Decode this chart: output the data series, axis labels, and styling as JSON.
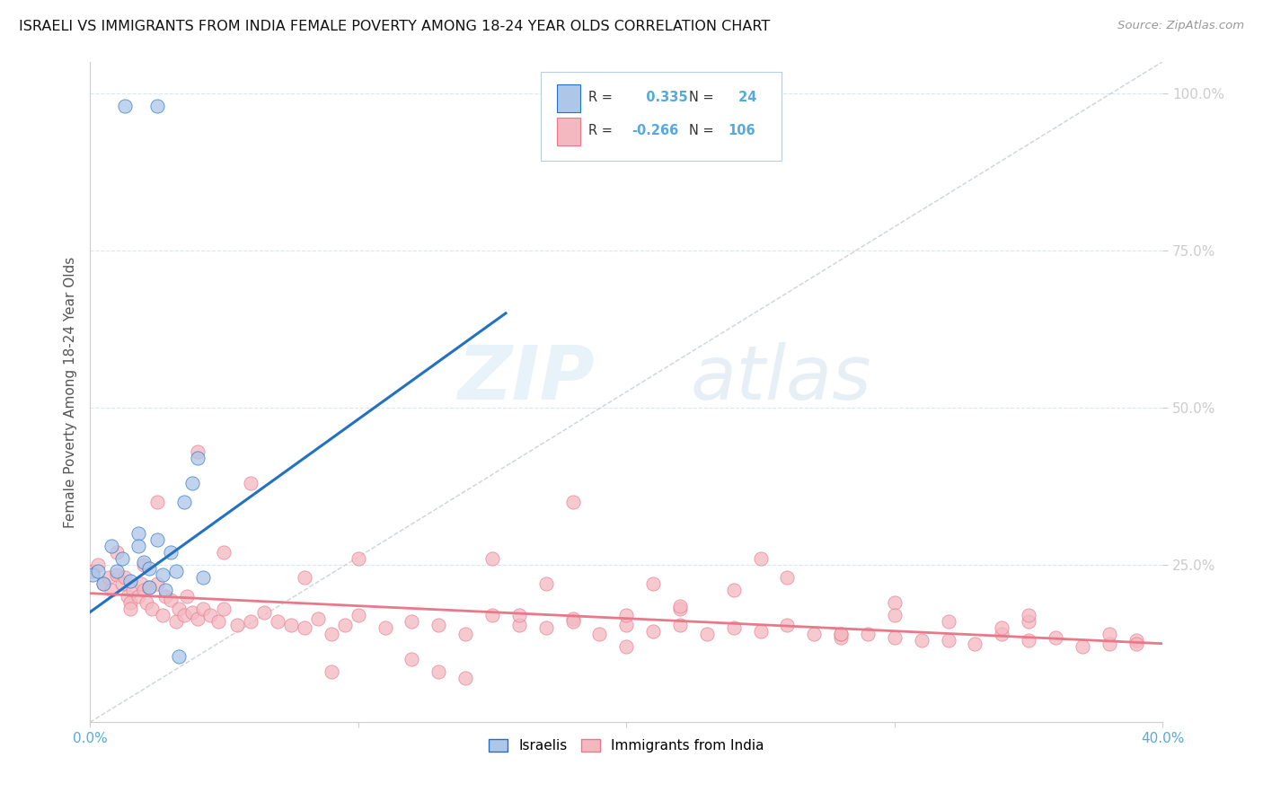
{
  "title": "ISRAELI VS IMMIGRANTS FROM INDIA FEMALE POVERTY AMONG 18-24 YEAR OLDS CORRELATION CHART",
  "source": "Source: ZipAtlas.com",
  "ylabel": "Female Poverty Among 18-24 Year Olds",
  "xlim": [
    0.0,
    0.4
  ],
  "ylim": [
    0.0,
    1.05
  ],
  "r_israeli": 0.335,
  "n_israeli": 24,
  "r_india": -0.266,
  "n_india": 106,
  "israeli_color": "#aec6e8",
  "india_color": "#f4b8c1",
  "israeli_line_color": "#2271c3",
  "india_line_color": "#e8788a",
  "diagonal_color": "#c0c8d0",
  "background_color": "#ffffff",
  "tick_color": "#55aadd",
  "israeli_scatter_x": [
    0.001,
    0.003,
    0.005,
    0.008,
    0.01,
    0.012,
    0.015,
    0.018,
    0.018,
    0.02,
    0.022,
    0.022,
    0.025,
    0.027,
    0.028,
    0.03,
    0.032,
    0.033,
    0.035,
    0.038,
    0.04,
    0.042,
    0.013,
    0.025
  ],
  "israeli_scatter_y": [
    0.235,
    0.24,
    0.22,
    0.28,
    0.24,
    0.26,
    0.225,
    0.3,
    0.28,
    0.255,
    0.245,
    0.215,
    0.29,
    0.235,
    0.21,
    0.27,
    0.24,
    0.105,
    0.35,
    0.38,
    0.42,
    0.23,
    0.98,
    0.98
  ],
  "india_scatter_x": [
    0.001,
    0.003,
    0.005,
    0.007,
    0.008,
    0.01,
    0.012,
    0.013,
    0.014,
    0.015,
    0.016,
    0.018,
    0.019,
    0.02,
    0.021,
    0.022,
    0.023,
    0.025,
    0.027,
    0.028,
    0.03,
    0.032,
    0.033,
    0.035,
    0.036,
    0.038,
    0.04,
    0.042,
    0.045,
    0.048,
    0.05,
    0.055,
    0.06,
    0.065,
    0.07,
    0.075,
    0.08,
    0.085,
    0.09,
    0.095,
    0.1,
    0.11,
    0.12,
    0.13,
    0.14,
    0.15,
    0.16,
    0.17,
    0.18,
    0.19,
    0.2,
    0.21,
    0.22,
    0.23,
    0.24,
    0.25,
    0.26,
    0.27,
    0.28,
    0.29,
    0.3,
    0.31,
    0.32,
    0.33,
    0.34,
    0.35,
    0.36,
    0.37,
    0.38,
    0.39,
    0.01,
    0.015,
    0.025,
    0.04,
    0.06,
    0.08,
    0.1,
    0.12,
    0.14,
    0.16,
    0.18,
    0.2,
    0.22,
    0.24,
    0.26,
    0.28,
    0.3,
    0.32,
    0.35,
    0.38,
    0.02,
    0.05,
    0.09,
    0.13,
    0.17,
    0.21,
    0.25,
    0.3,
    0.34,
    0.15,
    0.2,
    0.28,
    0.35,
    0.39,
    0.18,
    0.22
  ],
  "india_scatter_y": [
    0.24,
    0.25,
    0.22,
    0.23,
    0.21,
    0.235,
    0.22,
    0.23,
    0.2,
    0.19,
    0.21,
    0.2,
    0.22,
    0.21,
    0.19,
    0.215,
    0.18,
    0.22,
    0.17,
    0.2,
    0.195,
    0.16,
    0.18,
    0.17,
    0.2,
    0.175,
    0.165,
    0.18,
    0.17,
    0.16,
    0.18,
    0.155,
    0.16,
    0.175,
    0.16,
    0.155,
    0.15,
    0.165,
    0.14,
    0.155,
    0.17,
    0.15,
    0.16,
    0.155,
    0.14,
    0.17,
    0.155,
    0.15,
    0.165,
    0.14,
    0.155,
    0.145,
    0.155,
    0.14,
    0.15,
    0.145,
    0.155,
    0.14,
    0.135,
    0.14,
    0.135,
    0.13,
    0.13,
    0.125,
    0.14,
    0.13,
    0.135,
    0.12,
    0.125,
    0.13,
    0.27,
    0.18,
    0.35,
    0.43,
    0.38,
    0.23,
    0.26,
    0.1,
    0.07,
    0.17,
    0.16,
    0.12,
    0.18,
    0.21,
    0.23,
    0.14,
    0.19,
    0.16,
    0.16,
    0.14,
    0.25,
    0.27,
    0.08,
    0.08,
    0.22,
    0.22,
    0.26,
    0.17,
    0.15,
    0.26,
    0.17,
    0.14,
    0.17,
    0.125,
    0.35,
    0.185
  ],
  "israeli_line_x0": 0.0,
  "israeli_line_y0": 0.175,
  "israeli_line_x1": 0.155,
  "israeli_line_y1": 0.65,
  "india_line_x0": 0.0,
  "india_line_y0": 0.205,
  "india_line_x1": 0.4,
  "india_line_y1": 0.125
}
